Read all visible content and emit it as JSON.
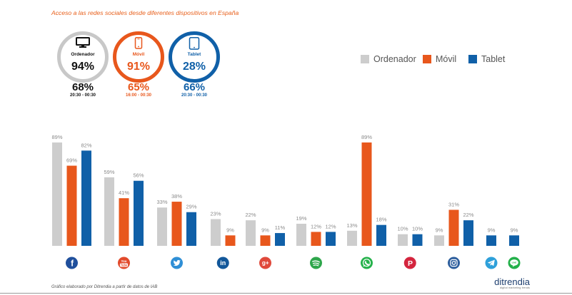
{
  "devices": [
    {
      "label": "Ordenador",
      "access": "94%",
      "peak_share": "68%",
      "peak_hours": "20:30 - 00:30",
      "icon": "monitor-icon",
      "ring_color": "#c8c8c8",
      "text_color": "#111111"
    },
    {
      "label": "Móvil",
      "access": "91%",
      "peak_share": "65%",
      "peak_hours": "16:00 - 00:30",
      "icon": "phone-icon",
      "ring_color": "#e8571c",
      "text_color": "#e8571c"
    },
    {
      "label": "Tablet",
      "access": "28%",
      "peak_share": "66%",
      "peak_hours": "20:30 - 00:30",
      "icon": "tablet-icon",
      "ring_color": "#1060a8",
      "text_color": "#1060a8"
    }
  ],
  "chart_data": {
    "type": "bar",
    "title": "Acceso a las redes sociales desde diferentes dispositivos en España",
    "categories": [
      "facebook-icon",
      "youtube-icon",
      "twitter-icon",
      "linkedin-icon",
      "googleplus-icon",
      "spotify-icon",
      "whatsapp-icon",
      "pinterest-icon",
      "instagram-icon",
      "telegram-icon",
      "line-icon"
    ],
    "category_icons": [
      {
        "color": "#1f4f9c",
        "glyph": "f"
      },
      {
        "color": "#e24a2b",
        "glyph": [
          "You",
          "Tube"
        ]
      },
      {
        "color": "#2f8fd6"
      },
      {
        "color": "#12579a",
        "glyph": "in"
      },
      {
        "color": "#e0493b",
        "glyph": "g+"
      },
      {
        "color": "#2ea64b"
      },
      {
        "color": "#25b24b"
      },
      {
        "color": "#d4253e",
        "glyph": "P"
      },
      {
        "color": "#2d5e9d"
      },
      {
        "color": "#2ea0da"
      },
      {
        "color": "#23b04a",
        "glyph": "LINE"
      }
    ],
    "series": [
      {
        "name": "Ordenador",
        "color": "#cdcdcd",
        "values": [
          89,
          59,
          33,
          23,
          22,
          19,
          13,
          10,
          9,
          null,
          null
        ]
      },
      {
        "name": "Móvil",
        "color": "#e8571c",
        "values": [
          69,
          41,
          38,
          9,
          9,
          12,
          89,
          null,
          31,
          null,
          null
        ]
      },
      {
        "name": "Tablet",
        "color": "#1060a8",
        "values": [
          82,
          56,
          29,
          null,
          11,
          12,
          18,
          10,
          22,
          9,
          9
        ]
      }
    ],
    "value_suffix": "%",
    "ylim": [
      0,
      100
    ],
    "grid": false,
    "legend_position": "top-right"
  },
  "footer": {
    "source": "Gráfico elaborado por Ditrendia a partir de datos de IAB"
  },
  "brand": {
    "name": "ditrendia",
    "tagline": "digital marketing trends"
  }
}
